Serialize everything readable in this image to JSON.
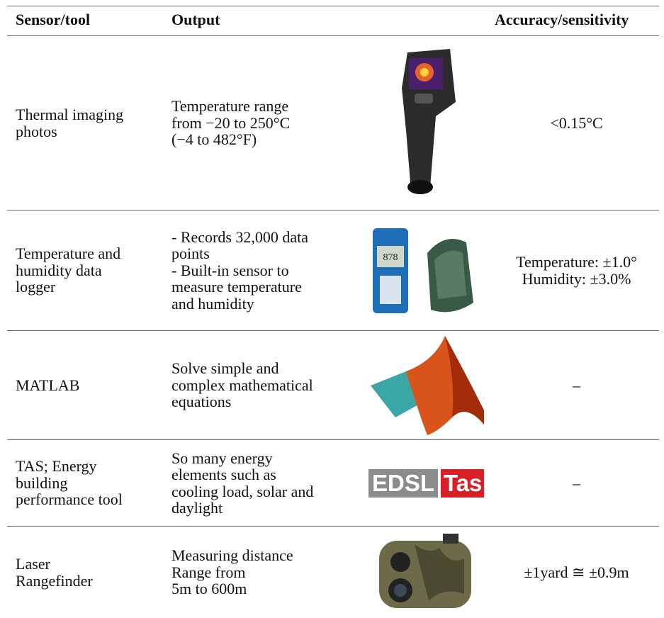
{
  "table": {
    "header": [
      "Sensor/tool",
      "Output",
      "Accuracy/sensitivity"
    ],
    "rows": [
      {
        "tool": [
          "Thermal imaging",
          "photos"
        ],
        "output": [
          "Temperature range",
          "from −20 to 250°C",
          "(−4 to 482°F)"
        ],
        "accuracy": [
          "<0.15°C"
        ]
      },
      {
        "tool": [
          "Temperature and",
          "humidity data",
          "logger"
        ],
        "output": [
          "- Records 32,000 data",
          "points",
          "- Built-in sensor to",
          "measure temperature",
          "and humidity"
        ],
        "accuracy": [
          "Temperature: ±1.0°",
          "Humidity: ±3.0%"
        ]
      },
      {
        "tool": [
          "MATLAB"
        ],
        "output": [
          "Solve simple and",
          "complex mathematical",
          "equations"
        ],
        "accuracy": [
          "–"
        ]
      },
      {
        "tool": [
          "TAS; Energy",
          "building",
          "performance tool"
        ],
        "output": [
          "So many energy",
          "elements such as",
          "cooling load, solar and",
          "daylight"
        ],
        "accuracy": [
          "–"
        ],
        "logo": [
          "EDSL",
          "Tas"
        ]
      },
      {
        "tool": [
          "Laser",
          "Rangefinder"
        ],
        "output": [
          "Measuring distance",
          "Range from",
          "5m to 600m"
        ],
        "accuracy": [
          "±1yard ≅ ±0.9m"
        ]
      }
    ]
  }
}
